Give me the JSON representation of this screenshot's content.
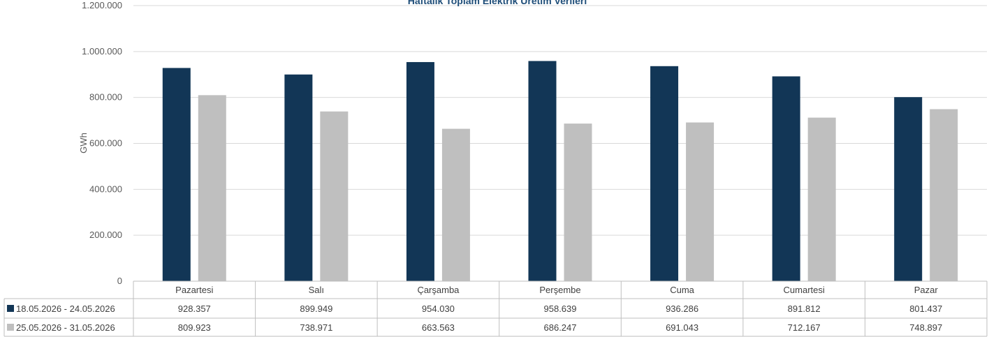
{
  "chart_data": {
    "type": "bar",
    "title": "Haftalık Toplam Elektrik Üretim Verileri",
    "ylabel": "GWh",
    "ylim": [
      0,
      1200000
    ],
    "yticks": [
      {
        "value": 0,
        "label": "0"
      },
      {
        "value": 200000,
        "label": "200.000"
      },
      {
        "value": 400000,
        "label": "400.000"
      },
      {
        "value": 600000,
        "label": "600.000"
      },
      {
        "value": 800000,
        "label": "800.000"
      },
      {
        "value": 1000000,
        "label": "1.000.000"
      },
      {
        "value": 1200000,
        "label": "1.200.000"
      }
    ],
    "grid": true,
    "legend": "data-table",
    "categories": [
      "Pazartesi",
      "Salı",
      "Çarşamba",
      "Perşembe",
      "Cuma",
      "Cumartesi",
      "Pazar"
    ],
    "series": [
      {
        "name": "18.05.2026 - 24.05.2026",
        "color": "#123656",
        "values": [
          928357,
          899949,
          954030,
          958639,
          936286,
          891812,
          801437
        ],
        "labels": [
          "928.357",
          "899.949",
          "954.030",
          "958.639",
          "936.286",
          "891.812",
          "801.437"
        ]
      },
      {
        "name": "25.05.2026 - 31.05.2026",
        "color": "#bfbfbf",
        "values": [
          809923,
          738971,
          663563,
          686247,
          691043,
          712167,
          748897
        ],
        "labels": [
          "809.923",
          "738.971",
          "663.563",
          "686.247",
          "691.043",
          "712.167",
          "748.897"
        ]
      }
    ]
  }
}
